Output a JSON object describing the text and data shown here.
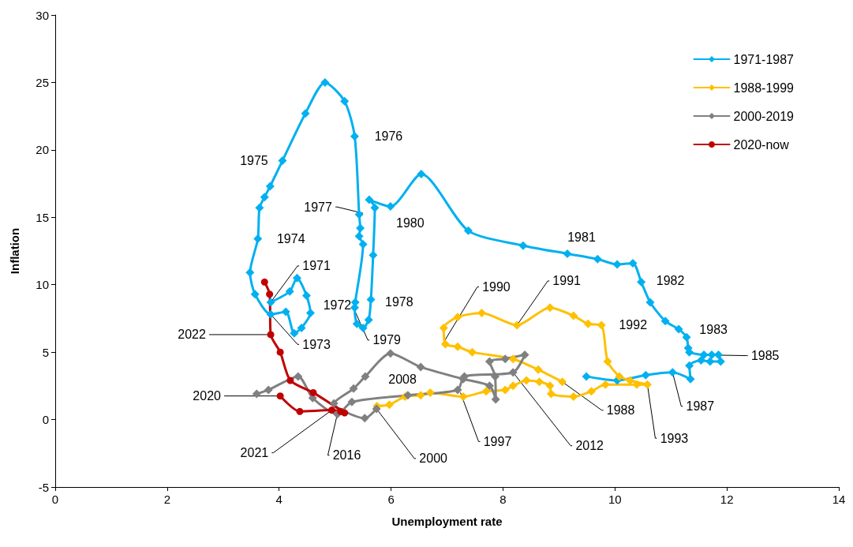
{
  "chart_data": {
    "type": "line",
    "xlabel": "Unemployment rate",
    "ylabel": "Inflation",
    "xlim": [
      0,
      14
    ],
    "xticks": [
      0,
      2,
      4,
      6,
      8,
      10,
      12,
      14
    ],
    "ylim": [
      -5,
      30
    ],
    "yticks": [
      -5,
      0,
      5,
      10,
      15,
      20,
      25,
      30
    ],
    "grid": false,
    "legend": "top right",
    "line_style": "solid",
    "series": [
      {
        "name": "1971-1987",
        "color": "#00b0f0",
        "marker": "diamond",
        "x": [
          3.85,
          4.19,
          4.32,
          4.49,
          4.56,
          4.4,
          4.27,
          4.12,
          3.85,
          3.57,
          3.48,
          3.62,
          3.65,
          3.74,
          3.84,
          4.06,
          4.47,
          4.82,
          5.17,
          5.35,
          5.43,
          5.45,
          5.43,
          5.5,
          5.36,
          5.35,
          5.39,
          5.5,
          5.6,
          5.64,
          5.68,
          5.71,
          5.61,
          5.99,
          6.54,
          7.38,
          8.36,
          9.15,
          9.69,
          10.04,
          10.32,
          10.47,
          10.63,
          10.9,
          11.14,
          11.28,
          11.31,
          11.33,
          11.59,
          11.73,
          11.85,
          11.89,
          11.7,
          11.54,
          11.33,
          11.35,
          11.03,
          10.55,
          10.04,
          9.49
        ],
        "values": [
          8.7,
          9.5,
          10.5,
          9.2,
          7.9,
          6.8,
          6.4,
          8.0,
          7.8,
          9.3,
          10.9,
          13.4,
          15.7,
          16.5,
          17.3,
          19.2,
          22.7,
          25.0,
          23.6,
          21.0,
          15.2,
          14.2,
          13.6,
          13.0,
          8.7,
          8.3,
          7.1,
          6.8,
          7.4,
          8.9,
          12.2,
          15.7,
          16.3,
          15.8,
          18.2,
          14.0,
          12.9,
          12.3,
          11.9,
          11.5,
          11.6,
          10.2,
          8.7,
          7.3,
          6.7,
          6.1,
          5.3,
          5.0,
          4.8,
          4.8,
          4.8,
          4.3,
          4.3,
          4.4,
          4.0,
          3.0,
          3.5,
          3.3,
          2.9,
          3.2
        ]
      },
      {
        "name": "1988-1999",
        "color": "#ffc000",
        "marker": "diamond",
        "x": [
          9.06,
          8.63,
          8.18,
          7.45,
          7.19,
          6.97,
          6.94,
          7.19,
          7.62,
          8.25,
          8.84,
          9.26,
          9.52,
          9.76,
          9.87,
          10.08,
          10.27,
          10.58,
          10.39,
          9.83,
          9.58,
          9.26,
          8.86,
          8.84,
          8.65,
          8.42,
          8.18,
          8.04,
          7.7,
          7.29,
          6.7,
          6.53,
          6.25,
          5.97,
          5.75
        ],
        "values": [
          2.8,
          3.7,
          4.5,
          5.0,
          5.4,
          5.6,
          6.8,
          7.6,
          7.9,
          7.0,
          8.3,
          7.7,
          7.1,
          7.0,
          4.3,
          3.2,
          2.9,
          2.6,
          2.6,
          2.6,
          2.1,
          1.7,
          1.9,
          2.5,
          2.8,
          2.9,
          2.5,
          2.2,
          2.1,
          1.7,
          2.0,
          1.8,
          1.7,
          1.1,
          1.0
        ]
      },
      {
        "name": "2000-2019",
        "color": "#808080",
        "marker": "diamond",
        "x": [
          5.74,
          5.53,
          4.98,
          5.33,
          5.54,
          5.99,
          6.53,
          7.29,
          7.76,
          7.87,
          7.86,
          7.76,
          8.04,
          8.39,
          8.18,
          7.31,
          7.19,
          6.3,
          5.3,
          5.04,
          4.6,
          4.34,
          3.81,
          3.6
        ],
        "values": [
          0.8,
          0.1,
          1.2,
          2.3,
          3.2,
          4.9,
          3.9,
          3.0,
          2.5,
          1.5,
          3.2,
          4.3,
          4.5,
          4.8,
          3.5,
          3.2,
          2.2,
          1.8,
          1.3,
          0.4,
          1.6,
          3.2,
          2.2,
          1.9
        ]
      },
      {
        "name": "2020-now",
        "color": "#c00000",
        "marker": "circle",
        "x": [
          4.02,
          4.37,
          4.94,
          5.1,
          5.17,
          4.61,
          4.2,
          4.02,
          3.85,
          3.83,
          3.74
        ],
        "values": [
          1.75,
          0.6,
          0.7,
          0.6,
          0.5,
          2.0,
          2.9,
          5.0,
          6.3,
          9.3,
          10.2
        ]
      }
    ],
    "annotations": [
      {
        "text": "1975",
        "x": 4.06,
        "y": 19.2
      },
      {
        "text": "1976",
        "x": 5.35,
        "y": 21.0
      },
      {
        "text": "1974",
        "x": 3.62,
        "y": 13.4
      },
      {
        "text": "1977",
        "x": 5.5,
        "y": 15.3
      },
      {
        "text": "1980",
        "x": 5.99,
        "y": 15.8
      },
      {
        "text": "1981",
        "x": 9.15,
        "y": 12.3
      },
      {
        "text": "1982",
        "x": 10.47,
        "y": 10.2
      },
      {
        "text": "1983",
        "x": 11.14,
        "y": 6.7
      },
      {
        "text": "1985",
        "x": 11.5,
        "y": 4.8
      },
      {
        "text": "1987",
        "x": 11.03,
        "y": 3.5
      },
      {
        "text": "1971",
        "x": 3.85,
        "y": 8.7
      },
      {
        "text": "1972",
        "x": 4.56,
        "y": 7.9
      },
      {
        "text": "1973",
        "x": 3.85,
        "y": 7.8
      },
      {
        "text": "1978",
        "x": 5.68,
        "y": 8.8
      },
      {
        "text": "1979",
        "x": 5.36,
        "y": 8.0
      },
      {
        "text": "1990",
        "x": 6.95,
        "y": 5.8
      },
      {
        "text": "1991",
        "x": 8.25,
        "y": 7.0
      },
      {
        "text": "1992",
        "x": 9.76,
        "y": 7.0
      },
      {
        "text": "1988",
        "x": 9.06,
        "y": 2.8
      },
      {
        "text": "1993",
        "x": 10.58,
        "y": 2.6
      },
      {
        "text": "1997",
        "x": 7.24,
        "y": 2.0
      },
      {
        "text": "2012",
        "x": 8.18,
        "y": 3.5
      },
      {
        "text": "2008",
        "x": 5.33,
        "y": 2.3
      },
      {
        "text": "2000",
        "x": 5.74,
        "y": 0.8
      },
      {
        "text": "2016",
        "x": 5.04,
        "y": 0.4
      },
      {
        "text": "2021",
        "x": 4.94,
        "y": 0.7
      },
      {
        "text": "2020",
        "x": 4.02,
        "y": 1.75
      },
      {
        "text": "2022",
        "x": 3.85,
        "y": 6.3
      }
    ]
  }
}
